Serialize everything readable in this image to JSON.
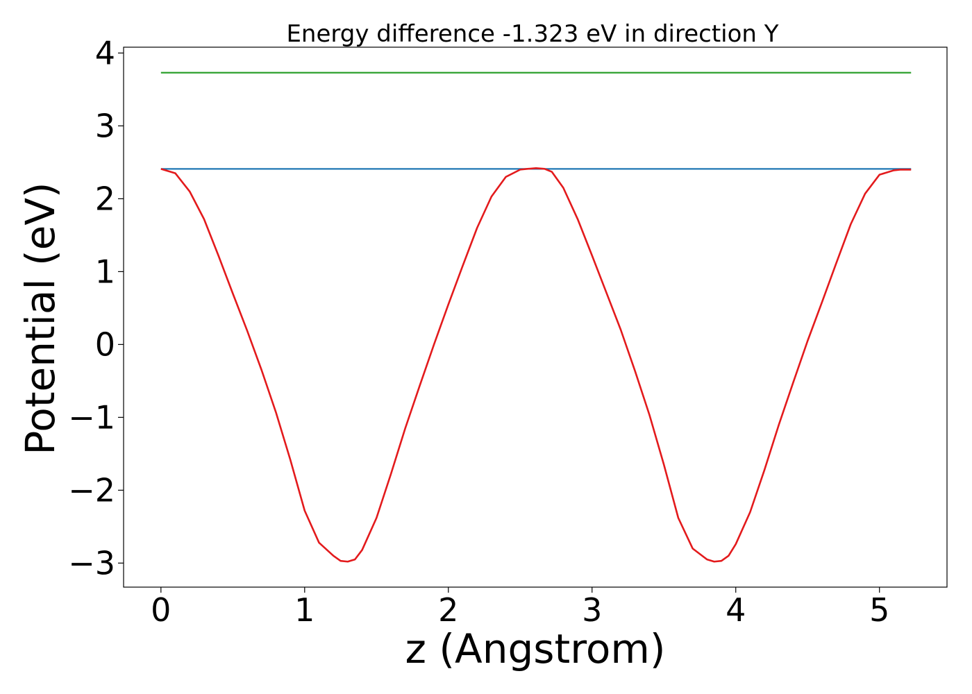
{
  "chart_data": {
    "type": "line",
    "title": "Energy difference -1.323 eV in direction Y",
    "xlabel": "z (Angstrom)",
    "ylabel": "Potential (eV)",
    "xlim": [
      -0.26,
      5.47
    ],
    "ylim": [
      -3.33,
      4.08
    ],
    "xticks": [
      0,
      1,
      2,
      3,
      4,
      5
    ],
    "xtick_labels": [
      "0",
      "1",
      "2",
      "3",
      "4",
      "5"
    ],
    "yticks": [
      -3,
      -2,
      -1,
      0,
      1,
      2,
      3,
      4
    ],
    "ytick_labels": [
      "−3",
      "−2",
      "−1",
      "0",
      "1",
      "2",
      "3",
      "4"
    ],
    "grid": false,
    "series": [
      {
        "color": "#2ca02c",
        "x": [
          0,
          5.22
        ],
        "y": [
          3.73,
          3.73
        ]
      },
      {
        "color": "#1f77b4",
        "x": [
          0,
          5.22
        ],
        "y": [
          2.41,
          2.41
        ]
      },
      {
        "color": "#e31a1c",
        "x": [
          0,
          0.1,
          0.2,
          0.3,
          0.4,
          0.5,
          0.6,
          0.7,
          0.8,
          0.9,
          1.0,
          1.1,
          1.2,
          1.25,
          1.3,
          1.35,
          1.4,
          1.5,
          1.6,
          1.7,
          1.8,
          1.9,
          2.0,
          2.1,
          2.2,
          2.3,
          2.4,
          2.5,
          2.55,
          2.61,
          2.67,
          2.72,
          2.8,
          2.9,
          3.0,
          3.1,
          3.2,
          3.3,
          3.4,
          3.5,
          3.6,
          3.7,
          3.8,
          3.85,
          3.9,
          3.95,
          4.0,
          4.1,
          4.2,
          4.3,
          4.4,
          4.5,
          4.6,
          4.7,
          4.8,
          4.9,
          5.0,
          5.1,
          5.15,
          5.22
        ],
        "y": [
          2.41,
          2.35,
          2.1,
          1.72,
          1.22,
          0.7,
          0.19,
          -0.35,
          -0.93,
          -1.58,
          -2.28,
          -2.72,
          -2.9,
          -2.97,
          -2.98,
          -2.95,
          -2.82,
          -2.38,
          -1.78,
          -1.15,
          -0.57,
          0.0,
          0.55,
          1.08,
          1.6,
          2.03,
          2.3,
          2.4,
          2.41,
          2.42,
          2.41,
          2.37,
          2.15,
          1.72,
          1.22,
          0.71,
          0.2,
          -0.37,
          -0.97,
          -1.65,
          -2.38,
          -2.8,
          -2.95,
          -2.98,
          -2.97,
          -2.9,
          -2.74,
          -2.3,
          -1.72,
          -1.1,
          -0.52,
          0.05,
          0.58,
          1.12,
          1.65,
          2.07,
          2.33,
          2.39,
          2.4,
          2.4
        ]
      }
    ]
  }
}
